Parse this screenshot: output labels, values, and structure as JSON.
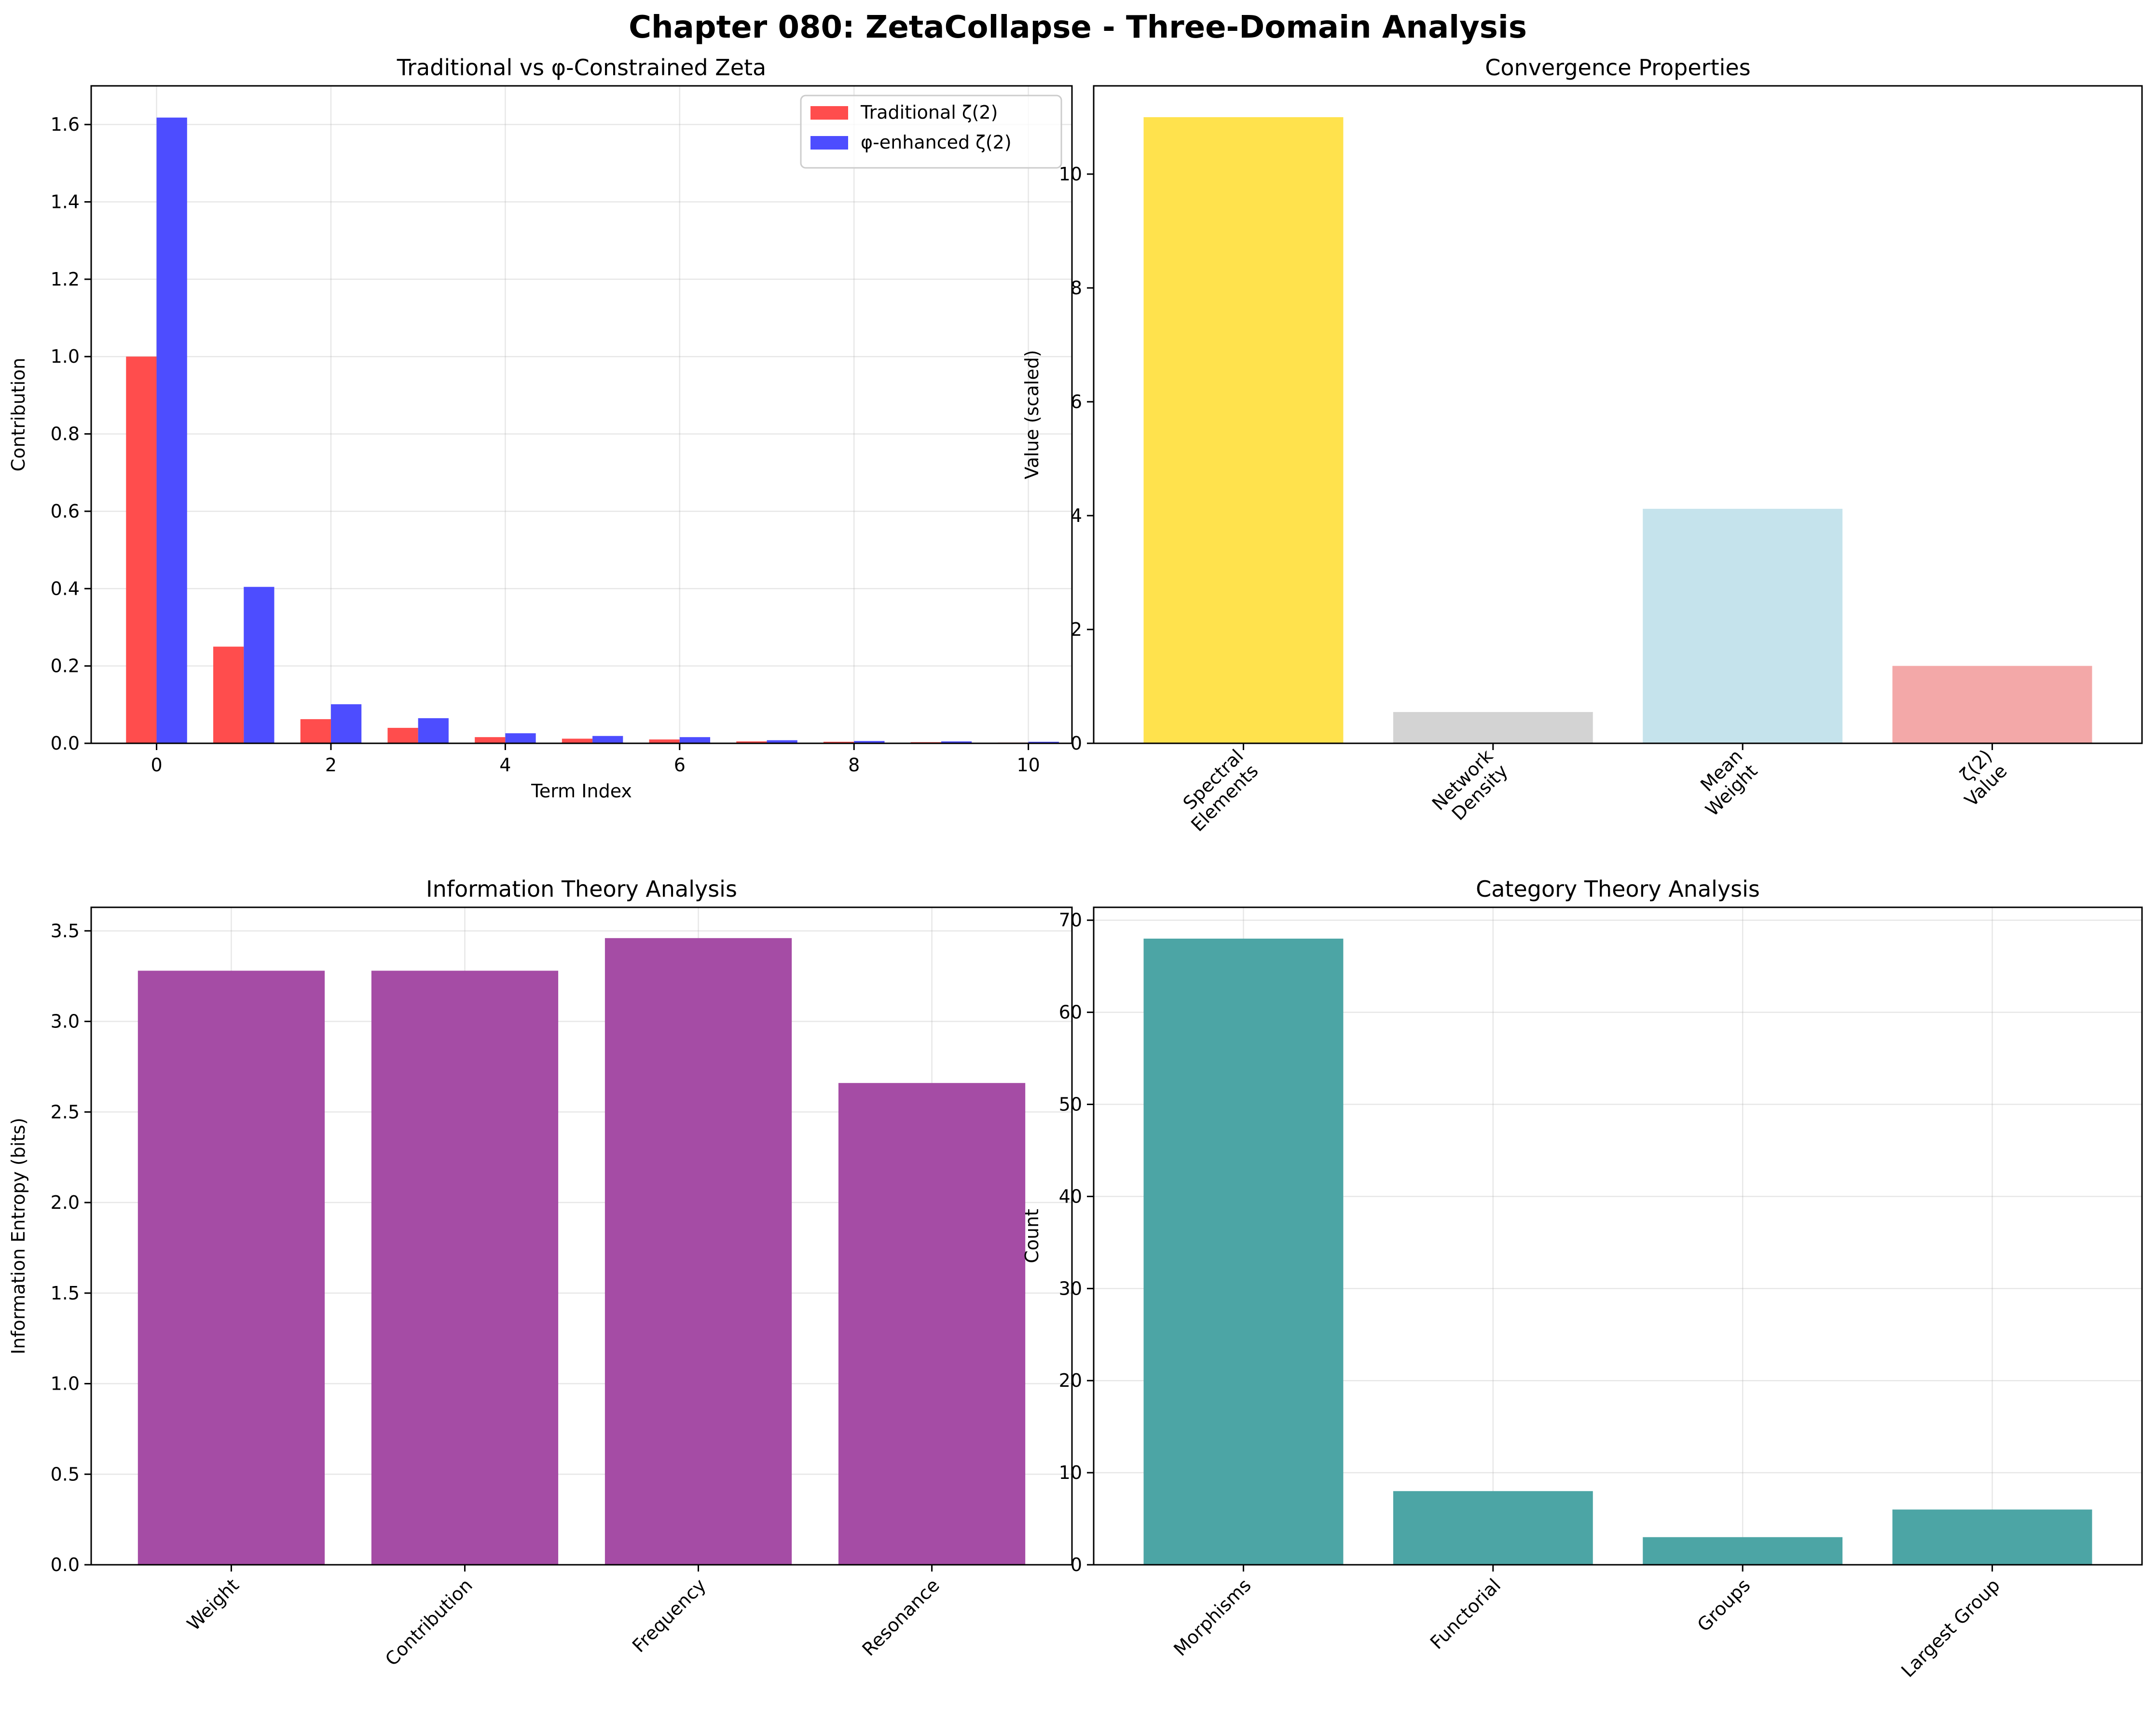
{
  "figure": {
    "title": "Chapter 080: ZetaCollapse - Three-Domain Analysis"
  },
  "chart_data": [
    {
      "id": "zeta",
      "type": "bar",
      "title": "Traditional vs φ-Constrained Zeta",
      "xlabel": "Term Index",
      "ylabel": "Contribution",
      "x": [
        0,
        1,
        2,
        3,
        4,
        5,
        6,
        7,
        8,
        9,
        10
      ],
      "xlim": [
        -0.75,
        10.5
      ],
      "ylim": [
        0,
        1.7
      ],
      "xticks": [
        "0",
        "2",
        "4",
        "6",
        "8",
        "10"
      ],
      "xtick_values": [
        0,
        2,
        4,
        6,
        8,
        10
      ],
      "yticks": [
        "0.0",
        "0.2",
        "0.4",
        "0.6",
        "0.8",
        "1.0",
        "1.2",
        "1.4",
        "1.6"
      ],
      "ytick_values": [
        0,
        0.2,
        0.4,
        0.6,
        0.8,
        1.0,
        1.2,
        1.4,
        1.6
      ],
      "grid": true,
      "legend": "top-right",
      "series": [
        {
          "name": "Traditional ζ(2)",
          "color": "#ff4d4d",
          "values": [
            1.0,
            0.25,
            0.0625,
            0.04,
            0.016,
            0.012,
            0.01,
            0.005,
            0.004,
            0.003,
            0.002
          ]
        },
        {
          "name": "φ-enhanced ζ(2)",
          "color": "#4d4dff",
          "values": [
            1.618,
            0.4045,
            0.101,
            0.065,
            0.026,
            0.019,
            0.016,
            0.008,
            0.006,
            0.005,
            0.004
          ]
        }
      ]
    },
    {
      "id": "convergence",
      "type": "bar",
      "title": "Convergence Properties",
      "xlabel": "",
      "ylabel": "Value (scaled)",
      "categories": [
        "Spectral\nElements",
        "Network\nDensity",
        "Mean\nWeight",
        "ζ(2)\nValue"
      ],
      "values": [
        11,
        0.55,
        4.12,
        1.36
      ],
      "colors": [
        "#ffe24d",
        "#d3d3d3",
        "#c5e3ec",
        "#f3a8a8"
      ],
      "ylim": [
        0,
        11.55
      ],
      "yticks": [
        "0",
        "2",
        "4",
        "6",
        "8",
        "10"
      ],
      "ytick_values": [
        0,
        2,
        4,
        6,
        8,
        10
      ],
      "grid": false
    },
    {
      "id": "information",
      "type": "bar",
      "title": "Information Theory Analysis",
      "xlabel": "",
      "ylabel": "Information Entropy (bits)",
      "categories": [
        "Weight",
        "Contribution",
        "Frequency",
        "Resonance"
      ],
      "values": [
        3.28,
        3.28,
        3.46,
        2.66
      ],
      "color": "#a54ca5",
      "ylim": [
        0,
        3.63
      ],
      "yticks": [
        "0.0",
        "0.5",
        "1.0",
        "1.5",
        "2.0",
        "2.5",
        "3.0",
        "3.5"
      ],
      "ytick_values": [
        0,
        0.5,
        1.0,
        1.5,
        2.0,
        2.5,
        3.0,
        3.5
      ],
      "grid": true
    },
    {
      "id": "category",
      "type": "bar",
      "title": "Category Theory Analysis",
      "xlabel": "",
      "ylabel": "Count",
      "categories": [
        "Morphisms",
        "Functorial",
        "Groups",
        "Largest Group"
      ],
      "values": [
        68,
        8,
        3,
        6
      ],
      "color": "#4ca5a5",
      "ylim": [
        0,
        71.4
      ],
      "yticks": [
        "0",
        "10",
        "20",
        "30",
        "40",
        "50",
        "60",
        "70"
      ],
      "ytick_values": [
        0,
        10,
        20,
        30,
        40,
        50,
        60,
        70
      ],
      "grid": true
    }
  ]
}
